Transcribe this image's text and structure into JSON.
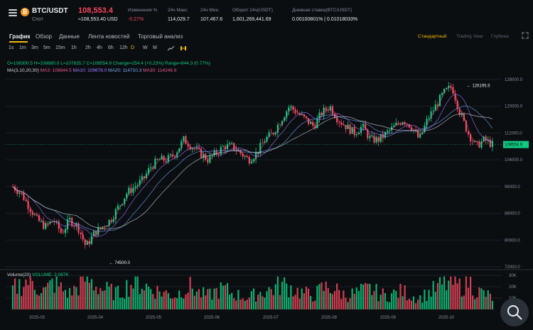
{
  "header": {
    "symbol": "BTC/USDT",
    "market": "Спот",
    "coin_glyph": "₿",
    "last_price": "108,553.4",
    "last_price_usd": "≈108,553.40 USD",
    "stats": [
      {
        "label": "Изменения %",
        "value": "-0.27%",
        "negative": true
      },
      {
        "label": "24ч Макс",
        "value": "114,029.7"
      },
      {
        "label": "24ч Мин",
        "value": "107,467.6"
      },
      {
        "label": "Оборот 24ч(USDT)",
        "value": "1,601,269,441.69"
      },
      {
        "label": "Дневная ставка(BTC/USDT)",
        "value": "0.00100801% | 0.01018033%"
      }
    ]
  },
  "tabs": [
    {
      "label": "График",
      "active": true
    },
    {
      "label": "Обзор"
    },
    {
      "label": "Данные"
    },
    {
      "label": "Лента новостей"
    },
    {
      "label": "Торговый анализ"
    }
  ],
  "view_tabs": [
    {
      "label": "Стандартный",
      "active": true
    },
    {
      "label": "Trading View"
    },
    {
      "label": "Глубина"
    }
  ],
  "intervals": [
    "1s",
    "1m",
    "3m",
    "5m",
    "15m",
    "1h",
    "2h",
    "4h",
    "6h",
    "12h",
    "D",
    "W",
    "M"
  ],
  "active_interval": "D",
  "ohlc": {
    "open": "O=108300.5",
    "high": "H=108680.0",
    "low": "L=107835.7",
    "close": "C=108554.9",
    "change": "Change=254.4 (+0.23%)",
    "range": "Range=844.3 (0.77%)"
  },
  "ma": {
    "title": "MA(3,10,20,30)",
    "ma3": "MA3: 108644.5",
    "ma10": "MA10: 109678.0",
    "ma20": "MA20: 114710.3",
    "ma30": "MA30: 114246.9"
  },
  "volume": {
    "title": "Volume(20)",
    "value": "VOLUME: 2.067K"
  },
  "annotations": {
    "high": "126195.5",
    "low": "74500.0",
    "last_price_tag": "108554.9"
  },
  "colors": {
    "up": "#0ecb81",
    "down": "#f6465d",
    "ma3": "#e4578b",
    "ma10": "#a17cff",
    "ma20": "#7aa9ff",
    "ma30": "#cfd3d8",
    "accent": "#f0b90b"
  },
  "chart_data": {
    "type": "candlestick",
    "y_axis_price": [
      "128000.0",
      "120000.0",
      "112000.0",
      "104000.0",
      "96000.0",
      "88000.0",
      "80000.0",
      "72000.0"
    ],
    "y_axis_volume": [
      "30K",
      "20K",
      "10K"
    ],
    "x_axis": [
      "2025-03",
      "2025-04",
      "2025-05",
      "2025-06",
      "2025-07",
      "2025-08",
      "2025-09",
      "2025-10"
    ],
    "close_path": [
      96000,
      94000,
      90000,
      86000,
      84000,
      86000,
      82000,
      86000,
      84000,
      78000,
      82000,
      84000,
      86000,
      90000,
      94000,
      96000,
      98000,
      102000,
      104000,
      104000,
      106000,
      110000,
      108000,
      106000,
      104000,
      106000,
      108000,
      108000,
      106000,
      104000,
      106000,
      110000,
      112000,
      116000,
      120000,
      118000,
      116000,
      114000,
      118000,
      120000,
      116000,
      114000,
      112000,
      114000,
      110000,
      110000,
      112000,
      114000,
      116000,
      114000,
      110000,
      116000,
      120000,
      124000,
      126000,
      118000,
      112000,
      108000,
      110000,
      108500
    ],
    "volume_path": [
      18,
      22,
      26,
      20,
      16,
      24,
      18,
      14,
      20,
      28,
      22,
      18,
      16,
      14,
      20,
      24,
      22,
      18,
      16,
      14,
      12,
      18,
      20,
      14,
      12,
      16,
      18,
      14,
      12,
      10,
      14,
      16,
      18,
      22,
      20,
      16,
      14,
      12,
      18,
      20,
      16,
      12,
      14,
      16,
      18,
      14,
      12,
      14,
      16,
      12,
      10,
      14,
      18,
      22,
      24,
      20,
      26,
      16,
      14,
      10
    ]
  }
}
